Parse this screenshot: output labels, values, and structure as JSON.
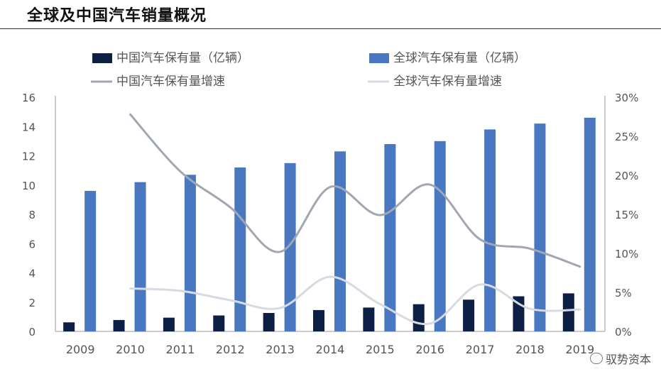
{
  "page": {
    "title": "全球及中国汽车销量概况",
    "watermark": "驭势资本"
  },
  "chart_data": {
    "type": "bar",
    "categories": [
      "2009",
      "2010",
      "2011",
      "2012",
      "2013",
      "2014",
      "2015",
      "2016",
      "2017",
      "2018",
      "2019"
    ],
    "series": [
      {
        "name": "中国汽车保有量（亿辆）",
        "kind": "bar",
        "axis": "left",
        "color": "#0d1f45",
        "values": [
          0.62,
          0.78,
          0.94,
          1.09,
          1.26,
          1.46,
          1.63,
          1.86,
          2.17,
          2.4,
          2.6
        ]
      },
      {
        "name": "全球汽车保有量（亿辆）",
        "kind": "bar",
        "axis": "left",
        "color": "#4a78c0",
        "values": [
          9.6,
          10.2,
          10.7,
          11.2,
          11.5,
          12.3,
          12.8,
          13.0,
          13.8,
          14.2,
          14.6
        ]
      },
      {
        "name": "中国汽车保有量增速",
        "kind": "line",
        "axis": "right",
        "color": "#a0a6b2",
        "values": [
          null,
          27.8,
          20.5,
          15.9,
          10.2,
          18.5,
          14.9,
          18.8,
          11.8,
          10.6,
          8.3
        ]
      },
      {
        "name": "全球汽车保有量增速",
        "kind": "line",
        "axis": "right",
        "color": "#d6dae3",
        "values": [
          null,
          5.5,
          5.2,
          4.0,
          3.0,
          7.0,
          3.5,
          1.0,
          6.0,
          2.9,
          2.8
        ]
      }
    ],
    "yleft": {
      "min": 0,
      "max": 16,
      "ticks": [
        "0",
        "2",
        "4",
        "6",
        "8",
        "10",
        "12",
        "14",
        "16"
      ]
    },
    "yright": {
      "min": 0,
      "max": 30,
      "ticks": [
        "0%",
        "5%",
        "10%",
        "15%",
        "20%",
        "25%",
        "30%"
      ]
    },
    "legend_position": "top"
  }
}
